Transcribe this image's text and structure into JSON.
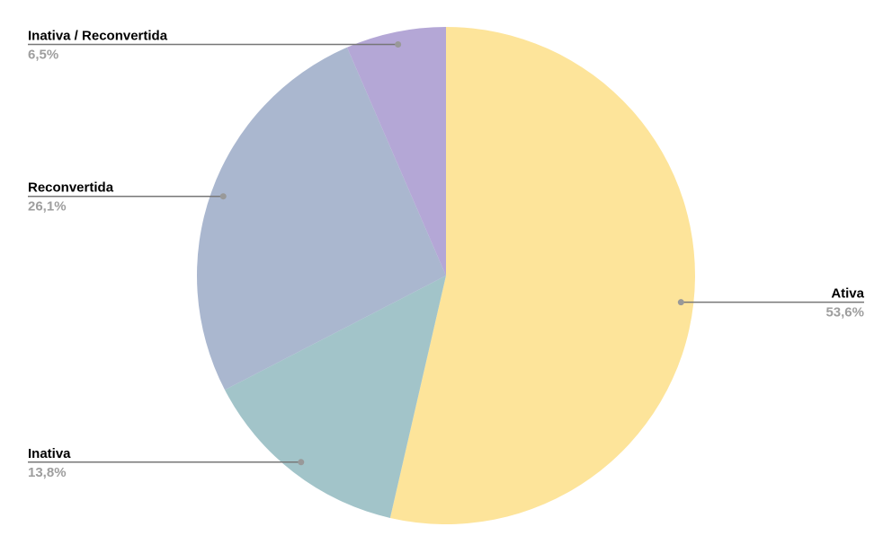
{
  "chart_data": {
    "type": "pie",
    "title": "",
    "start_angle": "top, clockwise",
    "slices": [
      {
        "label": "Ativa",
        "value": 53.6,
        "value_label": "53,6%",
        "color": "#fde49a"
      },
      {
        "label": "Inativa",
        "value": 13.8,
        "value_label": "13,8%",
        "color": "#a2c4c9"
      },
      {
        "label": "Reconvertida",
        "value": 26.1,
        "value_label": "26,1%",
        "color": "#aab7cf"
      },
      {
        "label": "Inativa / Reconvertida",
        "value": 6.5,
        "value_label": "6,5%",
        "color": "#b4a7d6"
      }
    ],
    "legend": "none (callout labels)"
  }
}
